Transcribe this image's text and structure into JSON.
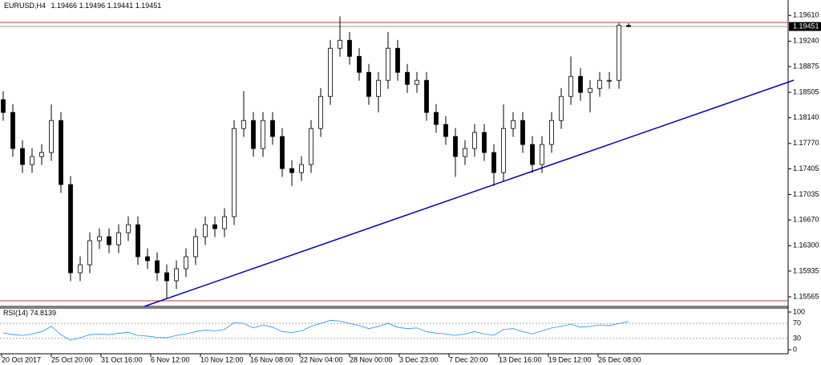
{
  "chart_data": [
    {
      "type": "candlestick",
      "title": "EURUSD,H4",
      "open": [
        1.184,
        1.18216,
        1.17697,
        1.17467,
        1.17582,
        1.1764,
        1.181,
        1.17179,
        1.15911,
        1.16026,
        1.16372,
        1.1643,
        1.16314,
        1.16487,
        1.16602,
        1.16142,
        1.16084,
        1.15911,
        1.15796,
        1.15969,
        1.16142,
        1.1643,
        1.16602,
        1.16545,
        1.16718,
        1.17985,
        1.181,
        1.17697,
        1.181,
        1.1787,
        1.17409,
        1.17351,
        1.17467,
        1.17985,
        1.18446,
        1.19138,
        1.19253,
        1.19022,
        1.18792,
        1.18446,
        1.18677,
        1.19138,
        1.18792,
        1.18619,
        1.18677,
        1.18216,
        1.18043,
        1.1787,
        1.17582,
        1.17697,
        1.17928,
        1.1764,
        1.17351,
        1.17985,
        1.181,
        1.17755,
        1.17467,
        1.17755,
        1.181,
        1.18446,
        1.18734,
        1.18504,
        1.18561,
        1.18677,
        1.18677,
        1.19466
      ],
      "high": [
        1.1852,
        1.18336,
        1.17817,
        1.17702,
        1.1776,
        1.1833,
        1.1822,
        1.17299,
        1.16146,
        1.16492,
        1.1655,
        1.1655,
        1.16607,
        1.16722,
        1.16722,
        1.16262,
        1.16204,
        1.16031,
        1.16089,
        1.16262,
        1.1655,
        1.16722,
        1.16722,
        1.16838,
        1.18105,
        1.1852,
        1.1822,
        1.1822,
        1.1822,
        1.1799,
        1.17529,
        1.17587,
        1.18105,
        1.18566,
        1.19258,
        1.19598,
        1.19373,
        1.19142,
        1.18912,
        1.18797,
        1.19373,
        1.19258,
        1.18912,
        1.18797,
        1.18797,
        1.18336,
        1.18163,
        1.1799,
        1.17817,
        1.18048,
        1.18048,
        1.1776,
        1.1833,
        1.1822,
        1.1822,
        1.17875,
        1.17875,
        1.1822,
        1.18566,
        1.19022,
        1.18854,
        1.18681,
        1.18797,
        1.18797,
        1.195,
        1.19496
      ],
      "low": [
        1.18096,
        1.17577,
        1.17347,
        1.17347,
        1.17462,
        1.1752,
        1.17059,
        1.15791,
        1.15791,
        1.15906,
        1.16252,
        1.16194,
        1.16194,
        1.16367,
        1.16022,
        1.15964,
        1.15791,
        1.15542,
        1.15676,
        1.15849,
        1.16022,
        1.1631,
        1.16425,
        1.16425,
        1.16598,
        1.17865,
        1.17577,
        1.17577,
        1.1775,
        1.17289,
        1.1716,
        1.17231,
        1.17347,
        1.17865,
        1.18326,
        1.19018,
        1.18902,
        1.18672,
        1.18326,
        1.18216,
        1.18557,
        1.18672,
        1.18499,
        1.18499,
        1.18096,
        1.17923,
        1.1775,
        1.1729,
        1.17462,
        1.17577,
        1.1752,
        1.1716,
        1.17231,
        1.17865,
        1.17635,
        1.17347,
        1.17347,
        1.17635,
        1.1798,
        1.18326,
        1.18384,
        1.18216,
        1.18441,
        1.18557,
        1.18557,
        1.19441
      ],
      "close": [
        1.18216,
        1.17697,
        1.17467,
        1.17582,
        1.1764,
        1.181,
        1.17179,
        1.15911,
        1.16026,
        1.16372,
        1.1643,
        1.16314,
        1.16487,
        1.16602,
        1.16142,
        1.16084,
        1.15911,
        1.15796,
        1.15969,
        1.16142,
        1.1643,
        1.16602,
        1.16545,
        1.16718,
        1.17985,
        1.181,
        1.17697,
        1.181,
        1.1787,
        1.17409,
        1.17351,
        1.17467,
        1.17985,
        1.18446,
        1.19138,
        1.19253,
        1.19022,
        1.18792,
        1.18446,
        1.18677,
        1.19138,
        1.18792,
        1.18619,
        1.18677,
        1.18216,
        1.18043,
        1.1787,
        1.17582,
        1.17697,
        1.17928,
        1.1764,
        1.17351,
        1.17985,
        1.181,
        1.17755,
        1.17467,
        1.17755,
        1.181,
        1.18446,
        1.18734,
        1.18504,
        1.18561,
        1.18677,
        1.18677,
        1.19466,
        1.19451
      ],
      "ylim": [
        1.1545,
        1.1974
      ],
      "yticks": [
        {
          "value": 1.1961,
          "label": "1.19610"
        },
        {
          "value": 1.1924,
          "label": "1.19240"
        },
        1.18875,
        1.18505,
        {
          "value": 1.1814,
          "label": "1.18140"
        },
        {
          "value": 1.1777,
          "label": "1.17770"
        },
        1.17405,
        1.17035,
        {
          "value": 1.1667,
          "label": "1.16670"
        },
        {
          "value": 1.163,
          "label": "1.16300"
        },
        1.15935,
        1.15565
      ],
      "xtick_labels": [
        "20 Oct 2017",
        "25 Oct 20:00",
        "31 Oct 16:00",
        "6 Nov 12:00",
        "10 Nov 12:00",
        "16 Nov 08:00",
        "22 Nov 04:00",
        "28 Nov 00:00",
        "3 Dec 23:00",
        "7 Dec 20:00",
        "13 Dec 16:00",
        "19 Dec 12:00",
        "26 Dec 08:00"
      ],
      "color": "#000000"
    },
    {
      "type": "line",
      "title": "RSI(14)",
      "values": [
        45,
        40,
        38,
        42,
        48,
        62,
        40,
        25,
        32,
        40,
        42,
        40,
        44,
        46,
        38,
        36,
        33,
        32,
        38,
        42,
        48,
        52,
        50,
        54,
        72,
        70,
        58,
        66,
        60,
        48,
        46,
        50,
        62,
        70,
        78,
        76,
        70,
        64,
        56,
        62,
        70,
        60,
        56,
        58,
        48,
        44,
        42,
        38,
        42,
        48,
        42,
        38,
        54,
        56,
        48,
        42,
        50,
        58,
        62,
        68,
        60,
        62,
        66,
        64,
        70,
        74.8139
      ],
      "color": "#1e90ff",
      "ylim": [
        0,
        100
      ],
      "yticks": [
        100,
        70,
        30,
        0
      ]
    }
  ]
}
